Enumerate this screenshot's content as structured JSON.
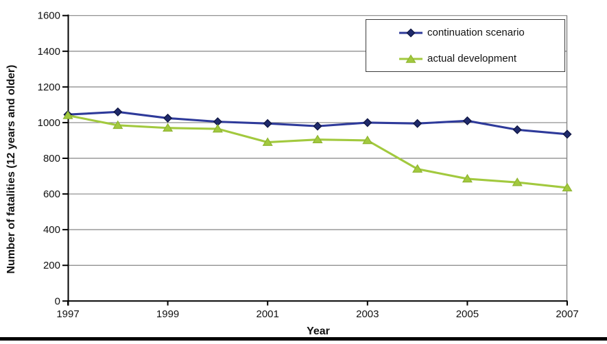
{
  "chart_data": {
    "type": "line",
    "title": "",
    "xlabel": "Year",
    "ylabel": "Number of fatalities (12 years and older)",
    "x": [
      1997,
      1998,
      1999,
      2000,
      2001,
      2002,
      2003,
      2004,
      2005,
      2006,
      2007
    ],
    "xlim": [
      1997,
      2007
    ],
    "ylim": [
      0,
      1600
    ],
    "y_ticks": [
      0,
      200,
      400,
      600,
      800,
      1000,
      1200,
      1400,
      1600
    ],
    "x_ticks": [
      1997,
      1999,
      2001,
      2003,
      2005,
      2007
    ],
    "grid": "horizontal",
    "legend_position": "inside-top-right",
    "series": [
      {
        "name": "continuation scenario",
        "marker": "diamond",
        "line_color": "#2e3a9a",
        "marker_fill": "#1f2a6b",
        "marker_stroke": "#0d1340",
        "values": [
          1045,
          1060,
          1025,
          1005,
          995,
          980,
          1000,
          995,
          1010,
          960,
          935
        ]
      },
      {
        "name": "actual development",
        "marker": "triangle-up",
        "line_color": "#a2c93e",
        "marker_fill": "#a2c93e",
        "marker_stroke": "#8fb530",
        "values": [
          1040,
          985,
          970,
          965,
          890,
          905,
          900,
          740,
          685,
          665,
          635
        ]
      }
    ]
  },
  "colors": {
    "gridline": "#858585",
    "axis": "#000000",
    "tick_text": "#111111",
    "legend_border": "#3b3b3b",
    "bottom_rule": "#000000",
    "background": "#ffffff"
  }
}
